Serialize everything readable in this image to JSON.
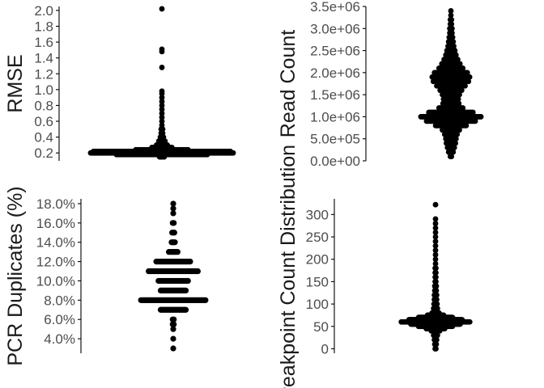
{
  "chart_data": [
    {
      "type": "scatter",
      "subtype": "beeswarm",
      "ylabel": "RMSE",
      "ylim": [
        0.1,
        2.05
      ],
      "yticks": [
        0.2,
        0.4,
        0.6,
        0.8,
        1.0,
        1.2,
        1.4,
        1.6,
        1.8,
        2.0
      ],
      "ytick_labels": [
        "0.2",
        "0.4",
        "0.6",
        "0.8",
        "1.0",
        "1.2",
        "1.4",
        "1.6",
        "1.8",
        "2.0"
      ],
      "distribution": [
        {
          "y": 0.15,
          "count": 4
        },
        {
          "y": 0.18,
          "count": 60
        },
        {
          "y": 0.2,
          "count": 150
        },
        {
          "y": 0.22,
          "count": 90
        },
        {
          "y": 0.24,
          "count": 35
        },
        {
          "y": 0.27,
          "count": 14
        },
        {
          "y": 0.3,
          "count": 8
        },
        {
          "y": 0.35,
          "count": 5
        },
        {
          "y": 0.4,
          "count": 3
        },
        {
          "y": 0.45,
          "count": 2
        },
        {
          "y": 0.5,
          "count": 2
        },
        {
          "y": 0.55,
          "count": 1
        },
        {
          "y": 0.6,
          "count": 1
        },
        {
          "y": 0.65,
          "count": 1
        },
        {
          "y": 0.7,
          "count": 1
        },
        {
          "y": 0.75,
          "count": 1
        },
        {
          "y": 0.8,
          "count": 1
        },
        {
          "y": 0.85,
          "count": 1
        },
        {
          "y": 0.9,
          "count": 1
        },
        {
          "y": 0.95,
          "count": 1
        },
        {
          "y": 0.98,
          "count": 1
        },
        {
          "y": 1.28,
          "count": 1
        },
        {
          "y": 1.48,
          "count": 1
        },
        {
          "y": 1.51,
          "count": 1
        },
        {
          "y": 2.02,
          "count": 1
        }
      ]
    },
    {
      "type": "scatter",
      "subtype": "beeswarm",
      "ylabel": "Read Count",
      "ylim": [
        0,
        3500000
      ],
      "yticks": [
        0,
        500000,
        1000000,
        1500000,
        2000000,
        2500000,
        3000000,
        3500000
      ],
      "ytick_labels": [
        "0.0e+00",
        "5.0e+05",
        "1.0e+06",
        "1.5e+06",
        "2.0e+06",
        "2.5e+06",
        "3.0e+06",
        "3.5e+06"
      ],
      "distribution": [
        {
          "y": 100000,
          "count": 2
        },
        {
          "y": 200000,
          "count": 5
        },
        {
          "y": 300000,
          "count": 7
        },
        {
          "y": 400000,
          "count": 9
        },
        {
          "y": 500000,
          "count": 10
        },
        {
          "y": 600000,
          "count": 12
        },
        {
          "y": 700000,
          "count": 16
        },
        {
          "y": 800000,
          "count": 28
        },
        {
          "y": 900000,
          "count": 44
        },
        {
          "y": 1000000,
          "count": 54
        },
        {
          "y": 1100000,
          "count": 40
        },
        {
          "y": 1200000,
          "count": 22
        },
        {
          "y": 1300000,
          "count": 15
        },
        {
          "y": 1400000,
          "count": 14
        },
        {
          "y": 1500000,
          "count": 16
        },
        {
          "y": 1600000,
          "count": 20
        },
        {
          "y": 1700000,
          "count": 26
        },
        {
          "y": 1800000,
          "count": 32
        },
        {
          "y": 1900000,
          "count": 34
        },
        {
          "y": 2000000,
          "count": 30
        },
        {
          "y": 2100000,
          "count": 22
        },
        {
          "y": 2200000,
          "count": 17
        },
        {
          "y": 2300000,
          "count": 13
        },
        {
          "y": 2400000,
          "count": 10
        },
        {
          "y": 2500000,
          "count": 8
        },
        {
          "y": 2600000,
          "count": 6
        },
        {
          "y": 2700000,
          "count": 5
        },
        {
          "y": 2800000,
          "count": 4
        },
        {
          "y": 2900000,
          "count": 3
        },
        {
          "y": 3000000,
          "count": 3
        },
        {
          "y": 3100000,
          "count": 2
        },
        {
          "y": 3200000,
          "count": 2
        },
        {
          "y": 3300000,
          "count": 1
        },
        {
          "y": 3400000,
          "count": 1
        }
      ]
    },
    {
      "type": "scatter",
      "subtype": "beeswarm",
      "ylabel": "PCR Duplicates (%)",
      "ylim": [
        2.5,
        18.5
      ],
      "yticks": [
        4,
        6,
        8,
        10,
        12,
        14,
        16,
        18
      ],
      "ytick_labels": [
        "4.0%",
        "6.0%",
        "8.0%",
        "10.0%",
        "12.0%",
        "14.0%",
        "16.0%",
        "18.0%"
      ],
      "distribution": [
        {
          "y": 3,
          "count": 1
        },
        {
          "y": 4,
          "count": 1
        },
        {
          "y": 5,
          "count": 1
        },
        {
          "y": 5.5,
          "count": 2
        },
        {
          "y": 6,
          "count": 2
        },
        {
          "y": 7,
          "count": 24
        },
        {
          "y": 8,
          "count": 60
        },
        {
          "y": 9,
          "count": 24
        },
        {
          "y": 10,
          "count": 28
        },
        {
          "y": 11,
          "count": 46
        },
        {
          "y": 12,
          "count": 32
        },
        {
          "y": 13,
          "count": 9
        },
        {
          "y": 14,
          "count": 4
        },
        {
          "y": 15,
          "count": 3
        },
        {
          "y": 16,
          "count": 2
        },
        {
          "y": 17,
          "count": 1
        },
        {
          "y": 17.5,
          "count": 1
        },
        {
          "y": 18,
          "count": 1
        }
      ]
    },
    {
      "type": "scatter",
      "subtype": "beeswarm",
      "ylabel": "Breakpoint Count Distribution",
      "ylim": [
        -10,
        335
      ],
      "yticks": [
        0,
        50,
        100,
        150,
        200,
        250,
        300
      ],
      "ytick_labels": [
        "0",
        "50",
        "100",
        "150",
        "200",
        "250",
        "300"
      ],
      "distribution": [
        {
          "y": 0,
          "count": 2
        },
        {
          "y": 10,
          "count": 3
        },
        {
          "y": 20,
          "count": 4
        },
        {
          "y": 30,
          "count": 6
        },
        {
          "y": 40,
          "count": 12
        },
        {
          "y": 45,
          "count": 25
        },
        {
          "y": 50,
          "count": 45
        },
        {
          "y": 55,
          "count": 65
        },
        {
          "y": 60,
          "count": 90
        },
        {
          "y": 65,
          "count": 70
        },
        {
          "y": 70,
          "count": 45
        },
        {
          "y": 75,
          "count": 22
        },
        {
          "y": 80,
          "count": 10
        },
        {
          "y": 90,
          "count": 6
        },
        {
          "y": 100,
          "count": 5
        },
        {
          "y": 110,
          "count": 4
        },
        {
          "y": 120,
          "count": 4
        },
        {
          "y": 130,
          "count": 3
        },
        {
          "y": 140,
          "count": 3
        },
        {
          "y": 150,
          "count": 2
        },
        {
          "y": 160,
          "count": 2
        },
        {
          "y": 170,
          "count": 2
        },
        {
          "y": 180,
          "count": 2
        },
        {
          "y": 190,
          "count": 1
        },
        {
          "y": 200,
          "count": 1
        },
        {
          "y": 210,
          "count": 1
        },
        {
          "y": 220,
          "count": 1
        },
        {
          "y": 230,
          "count": 1
        },
        {
          "y": 240,
          "count": 1
        },
        {
          "y": 250,
          "count": 1
        },
        {
          "y": 260,
          "count": 1
        },
        {
          "y": 270,
          "count": 1
        },
        {
          "y": 280,
          "count": 1
        },
        {
          "y": 290,
          "count": 1
        },
        {
          "y": 322,
          "count": 1
        }
      ]
    }
  ]
}
